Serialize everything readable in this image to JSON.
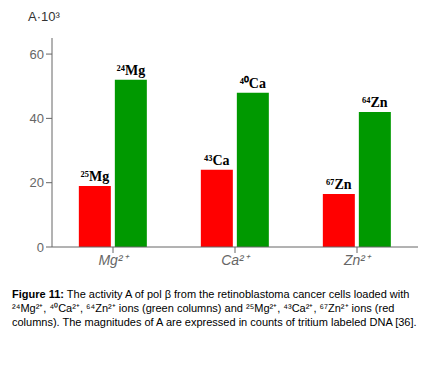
{
  "chart_data": {
    "type": "bar",
    "categories": [
      "Mg²⁺",
      "Ca²⁺",
      "Zn²⁺"
    ],
    "series": [
      {
        "color": "#ff0000",
        "values": [
          19,
          24,
          16.5
        ],
        "labels": [
          "²⁵Mg",
          "⁴³Ca",
          "⁶⁷Zn"
        ]
      },
      {
        "color": "#009900",
        "values": [
          52,
          48,
          42
        ],
        "labels": [
          "²⁴Mg",
          "⁴⁰Ca",
          "⁶⁴Zn"
        ]
      }
    ],
    "y_label": "A·10³",
    "ylim": [
      0,
      65
    ],
    "yticks": [
      0,
      20,
      40,
      60
    ],
    "grid": false,
    "caption_label": "Figure 11:",
    "caption": "The activity A of pol β from the retinoblastoma cancer cells loaded with ²⁴Mg²⁺, ⁴⁰Ca²⁺, ⁶⁴Zn²⁺ ions (green columns) and ²⁵Mg²⁺, ⁴³Ca²⁺, ⁶⁷Zn²⁺ ions (red columns). The magnitudes of A are expressed in counts of tritium labeled DNA [36]."
  }
}
